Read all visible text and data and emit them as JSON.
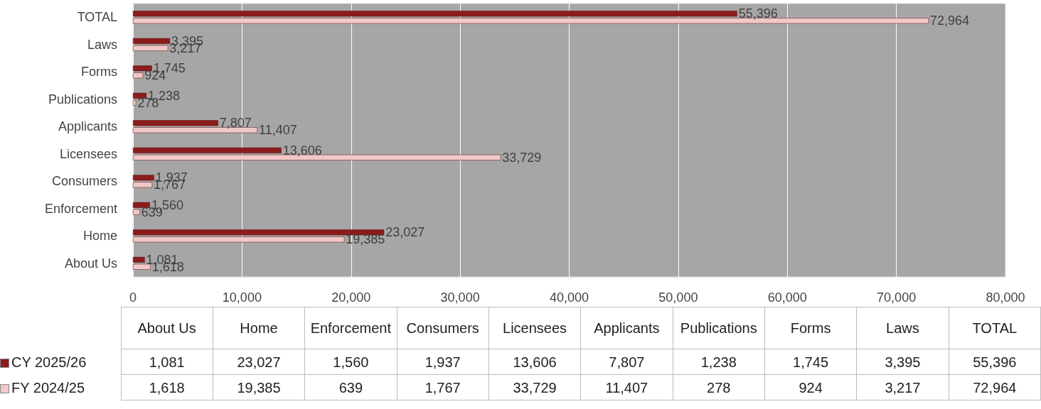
{
  "chart_data": {
    "type": "bar",
    "orientation": "horizontal",
    "categories": [
      "TOTAL",
      "Laws",
      "Forms",
      "Publications",
      "Applicants",
      "Licensees",
      "Consumers",
      "Enforcement",
      "Home",
      "About Us"
    ],
    "series": [
      {
        "name": "CY 2025/26",
        "color": "#8b1c1c",
        "values": [
          55396,
          3395,
          1745,
          1238,
          7807,
          13606,
          1937,
          1560,
          23027,
          1081
        ],
        "value_labels": [
          "55,396",
          "3,395",
          "1,745",
          "1,238",
          "7,807",
          "13,606",
          "1,937",
          "1,560",
          "23,027",
          "1,081"
        ]
      },
      {
        "name": "FY 2024/25",
        "color": "#f0c8c8",
        "values": [
          72964,
          3217,
          924,
          278,
          11407,
          33729,
          1767,
          639,
          19385,
          1618
        ],
        "value_labels": [
          "72,964",
          "3,217",
          "924",
          "278",
          "11,407",
          "33,729",
          "1,767",
          "639",
          "19,385",
          "1,618"
        ]
      }
    ],
    "xlim": [
      0,
      80000
    ],
    "xticks": [
      0,
      {
        "value": 10000,
        "label": "10,000"
      },
      {
        "value": 20000,
        "label": "20,000"
      },
      {
        "value": 30000,
        "label": "30,000"
      },
      {
        "value": 40000,
        "label": "40,000"
      },
      {
        "value": 50000,
        "label": "50,000"
      },
      {
        "value": 60000,
        "label": "60,000"
      },
      {
        "value": 70000,
        "label": "70,000"
      },
      {
        "value": 80000,
        "label": "80,000"
      }
    ],
    "grid": "x",
    "legend": "bottom"
  }
}
